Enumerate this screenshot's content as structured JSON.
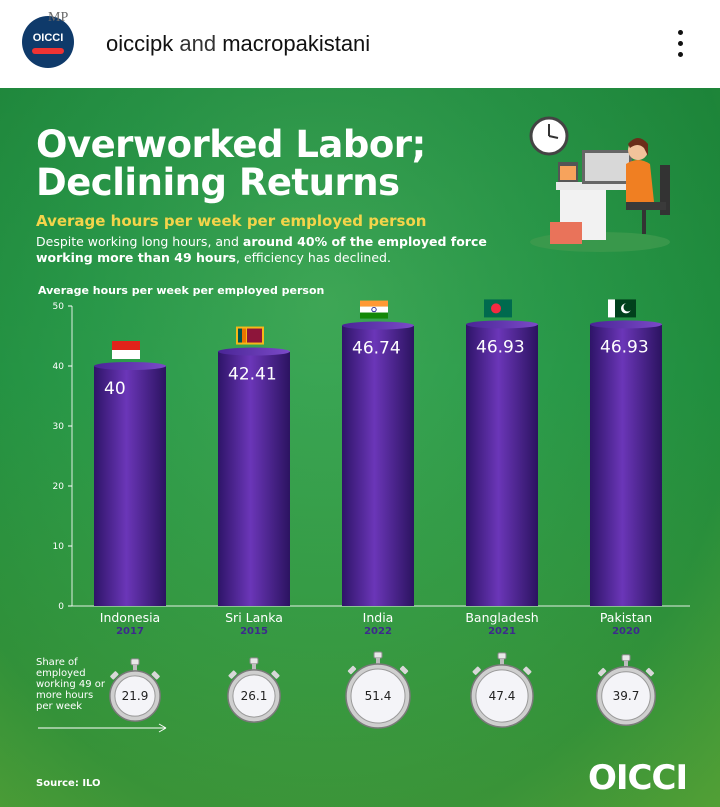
{
  "header": {
    "username_1": "oiccipk",
    "connector": "and",
    "username_2": "macropakistani",
    "avatar_text": "OICCI",
    "badge_text": "MP",
    "menu_icon": "more-vertical-icon"
  },
  "post": {
    "title_line1": "Overworked Labor;",
    "title_line2": "Declining Returns",
    "subtitle": "Average hours per week per employed person",
    "description_part1": "Despite working long hours, and ",
    "description_bold": "around 40% of the employed force working more than 49 hours",
    "description_part2": ", efficiency has declined.",
    "share_label": "Share of employed working 49 or more hours per week",
    "source": "Source: ILO",
    "brand": "OICCI",
    "colors": {
      "background": "#2a9a4a",
      "bar": "#5a2ea0",
      "subtitle": "#f4d44a",
      "year": "#3d2b8c"
    }
  },
  "chart_data": {
    "type": "bar",
    "ylabel": "Average hours per week per employed person",
    "ylim": [
      0,
      50
    ],
    "yticks": [
      0,
      10,
      20,
      30,
      40,
      50
    ],
    "categories": [
      "Indonesia",
      "Sri Lanka",
      "India",
      "Bangladesh",
      "Pakistan"
    ],
    "years": [
      "2017",
      "2015",
      "2022",
      "2021",
      "2020"
    ],
    "values": [
      40,
      42.41,
      46.74,
      46.93,
      46.93
    ],
    "value_labels": [
      "40",
      "42.41",
      "46.74",
      "46.93",
      "46.93"
    ],
    "share_49_plus": [
      21.9,
      26.1,
      51.4,
      47.4,
      39.7
    ],
    "share_labels": [
      "21.9",
      "26.1",
      "51.4",
      "47.4",
      "39.7"
    ],
    "flags": [
      "indonesia-flag-icon",
      "sri-lanka-flag-icon",
      "india-flag-icon",
      "bangladesh-flag-icon",
      "pakistan-flag-icon"
    ],
    "grid": false
  }
}
